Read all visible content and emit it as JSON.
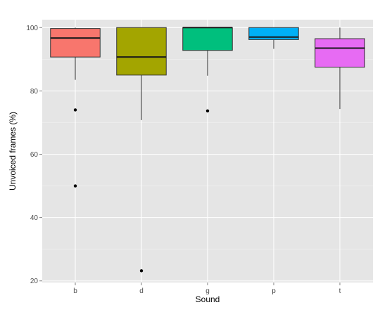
{
  "chart_data": {
    "type": "box",
    "title": "",
    "xlabel": "Sound",
    "ylabel": "Unvoiced frames (%)",
    "ylim": [
      19.5,
      102.5
    ],
    "yticks": [
      20,
      40,
      60,
      80,
      100
    ],
    "grid": true,
    "legend": "none",
    "panel_background": "#e5e5e5",
    "grid_color": "#ffffff",
    "categories": [
      "b",
      "d",
      "g",
      "p",
      "t"
    ],
    "boxes": [
      {
        "category": "b",
        "whisker_low": 83.5,
        "q1": 90.7,
        "median": 96.7,
        "q3": 99.7,
        "whisker_high": 100.0,
        "outliers": [
          74.0,
          50.0
        ],
        "fill": "#f8766d"
      },
      {
        "category": "d",
        "whisker_low": 70.8,
        "q1": 85.0,
        "median": 90.7,
        "q3": 100.0,
        "whisker_high": 100.0,
        "outliers": [
          23.2
        ],
        "fill": "#a3a500"
      },
      {
        "category": "g",
        "whisker_low": 84.8,
        "q1": 92.8,
        "median": 100.0,
        "q3": 100.0,
        "whisker_high": 100.0,
        "outliers": [
          73.7
        ],
        "fill": "#00bf7d"
      },
      {
        "category": "p",
        "whisker_low": 93.3,
        "q1": 96.2,
        "median": 97.0,
        "q3": 100.0,
        "whisker_high": 100.0,
        "outliers": [],
        "fill": "#00b0f6"
      },
      {
        "category": "t",
        "whisker_low": 74.3,
        "q1": 87.5,
        "median": 93.5,
        "q3": 96.5,
        "whisker_high": 100.0,
        "outliers": [],
        "fill": "#e76bf3"
      }
    ]
  }
}
